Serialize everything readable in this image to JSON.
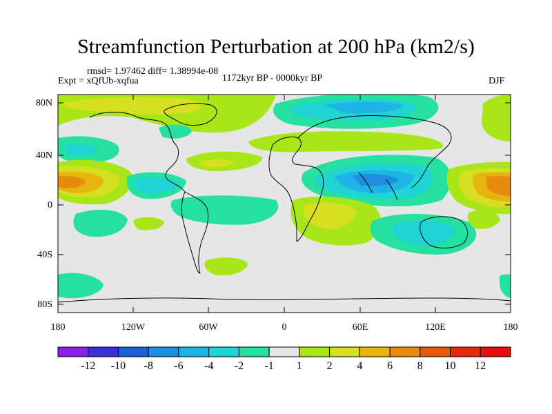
{
  "title": "Streamfunction Perturbation at 200 hPa (km2/s)",
  "stats": "rmsd= 1.97462 diff= 1.38994e-08",
  "experiment": "Expt = xQfUb-xqfua",
  "period": "1172kyr BP - 0000kyr BP",
  "season": "DJF",
  "map": {
    "lat_ticks": [
      "80N",
      "40N",
      "0",
      "40S",
      "80S"
    ],
    "lon_ticks": [
      "180",
      "120W",
      "60W",
      "0",
      "60E",
      "120E",
      "180"
    ],
    "background_color": "#e6e6e6"
  },
  "colorbar": {
    "labels": [
      "-12",
      "-10",
      "-8",
      "-6",
      "-4",
      "-2",
      "-1",
      "1",
      "2",
      "4",
      "6",
      "8",
      "10",
      "12"
    ],
    "colors": [
      "#8a1fe6",
      "#3b2fd9",
      "#1f5fd6",
      "#1e8fe0",
      "#1fb4e6",
      "#20d4d6",
      "#25e0a0",
      "#e6e6e6",
      "#a9e619",
      "#d6e020",
      "#e6b30f",
      "#e68a10",
      "#e65a10",
      "#e62a10",
      "#e61010"
    ]
  }
}
